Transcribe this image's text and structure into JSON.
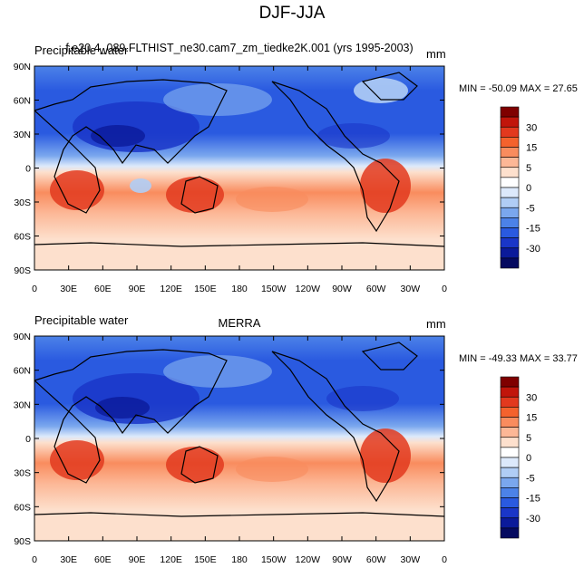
{
  "figure_title": "DJF-JJA",
  "panels": [
    {
      "left_label": "Precipitable water",
      "center_label": "f.e20.4_089.FLTHIST_ne30.cam7_zm_tiedke2K.001 (yrs 1995-2003)",
      "units": "mm",
      "min_label": "MIN = -50.09",
      "max_label": "MAX =  27.65"
    },
    {
      "left_label": "Precipitable water",
      "center_label": "MERRA",
      "units": "mm",
      "min_label": "MIN = -49.33",
      "max_label": "MAX =  33.77"
    }
  ],
  "lat_ticks": [
    "90N",
    "60N",
    "30N",
    "0",
    "30S",
    "60S",
    "90S"
  ],
  "lon_ticks": [
    "0",
    "30E",
    "60E",
    "90E",
    "120E",
    "150E",
    "180",
    "150W",
    "120W",
    "90W",
    "60W",
    "30W",
    "0"
  ],
  "colorbar": {
    "labels": [
      "30",
      "15",
      "5",
      "0",
      "-5",
      "-15",
      "-30"
    ],
    "colors": [
      "#7f0000",
      "#c1150b",
      "#e2391e",
      "#f4622d",
      "#f98c5e",
      "#fcb796",
      "#fde0cd",
      "#ffffff",
      "#dce9fb",
      "#b0cdf5",
      "#7aa7ee",
      "#4c82e8",
      "#2a5ae0",
      "#1a36c8",
      "#0b1a9a",
      "#050a60"
    ]
  }
}
